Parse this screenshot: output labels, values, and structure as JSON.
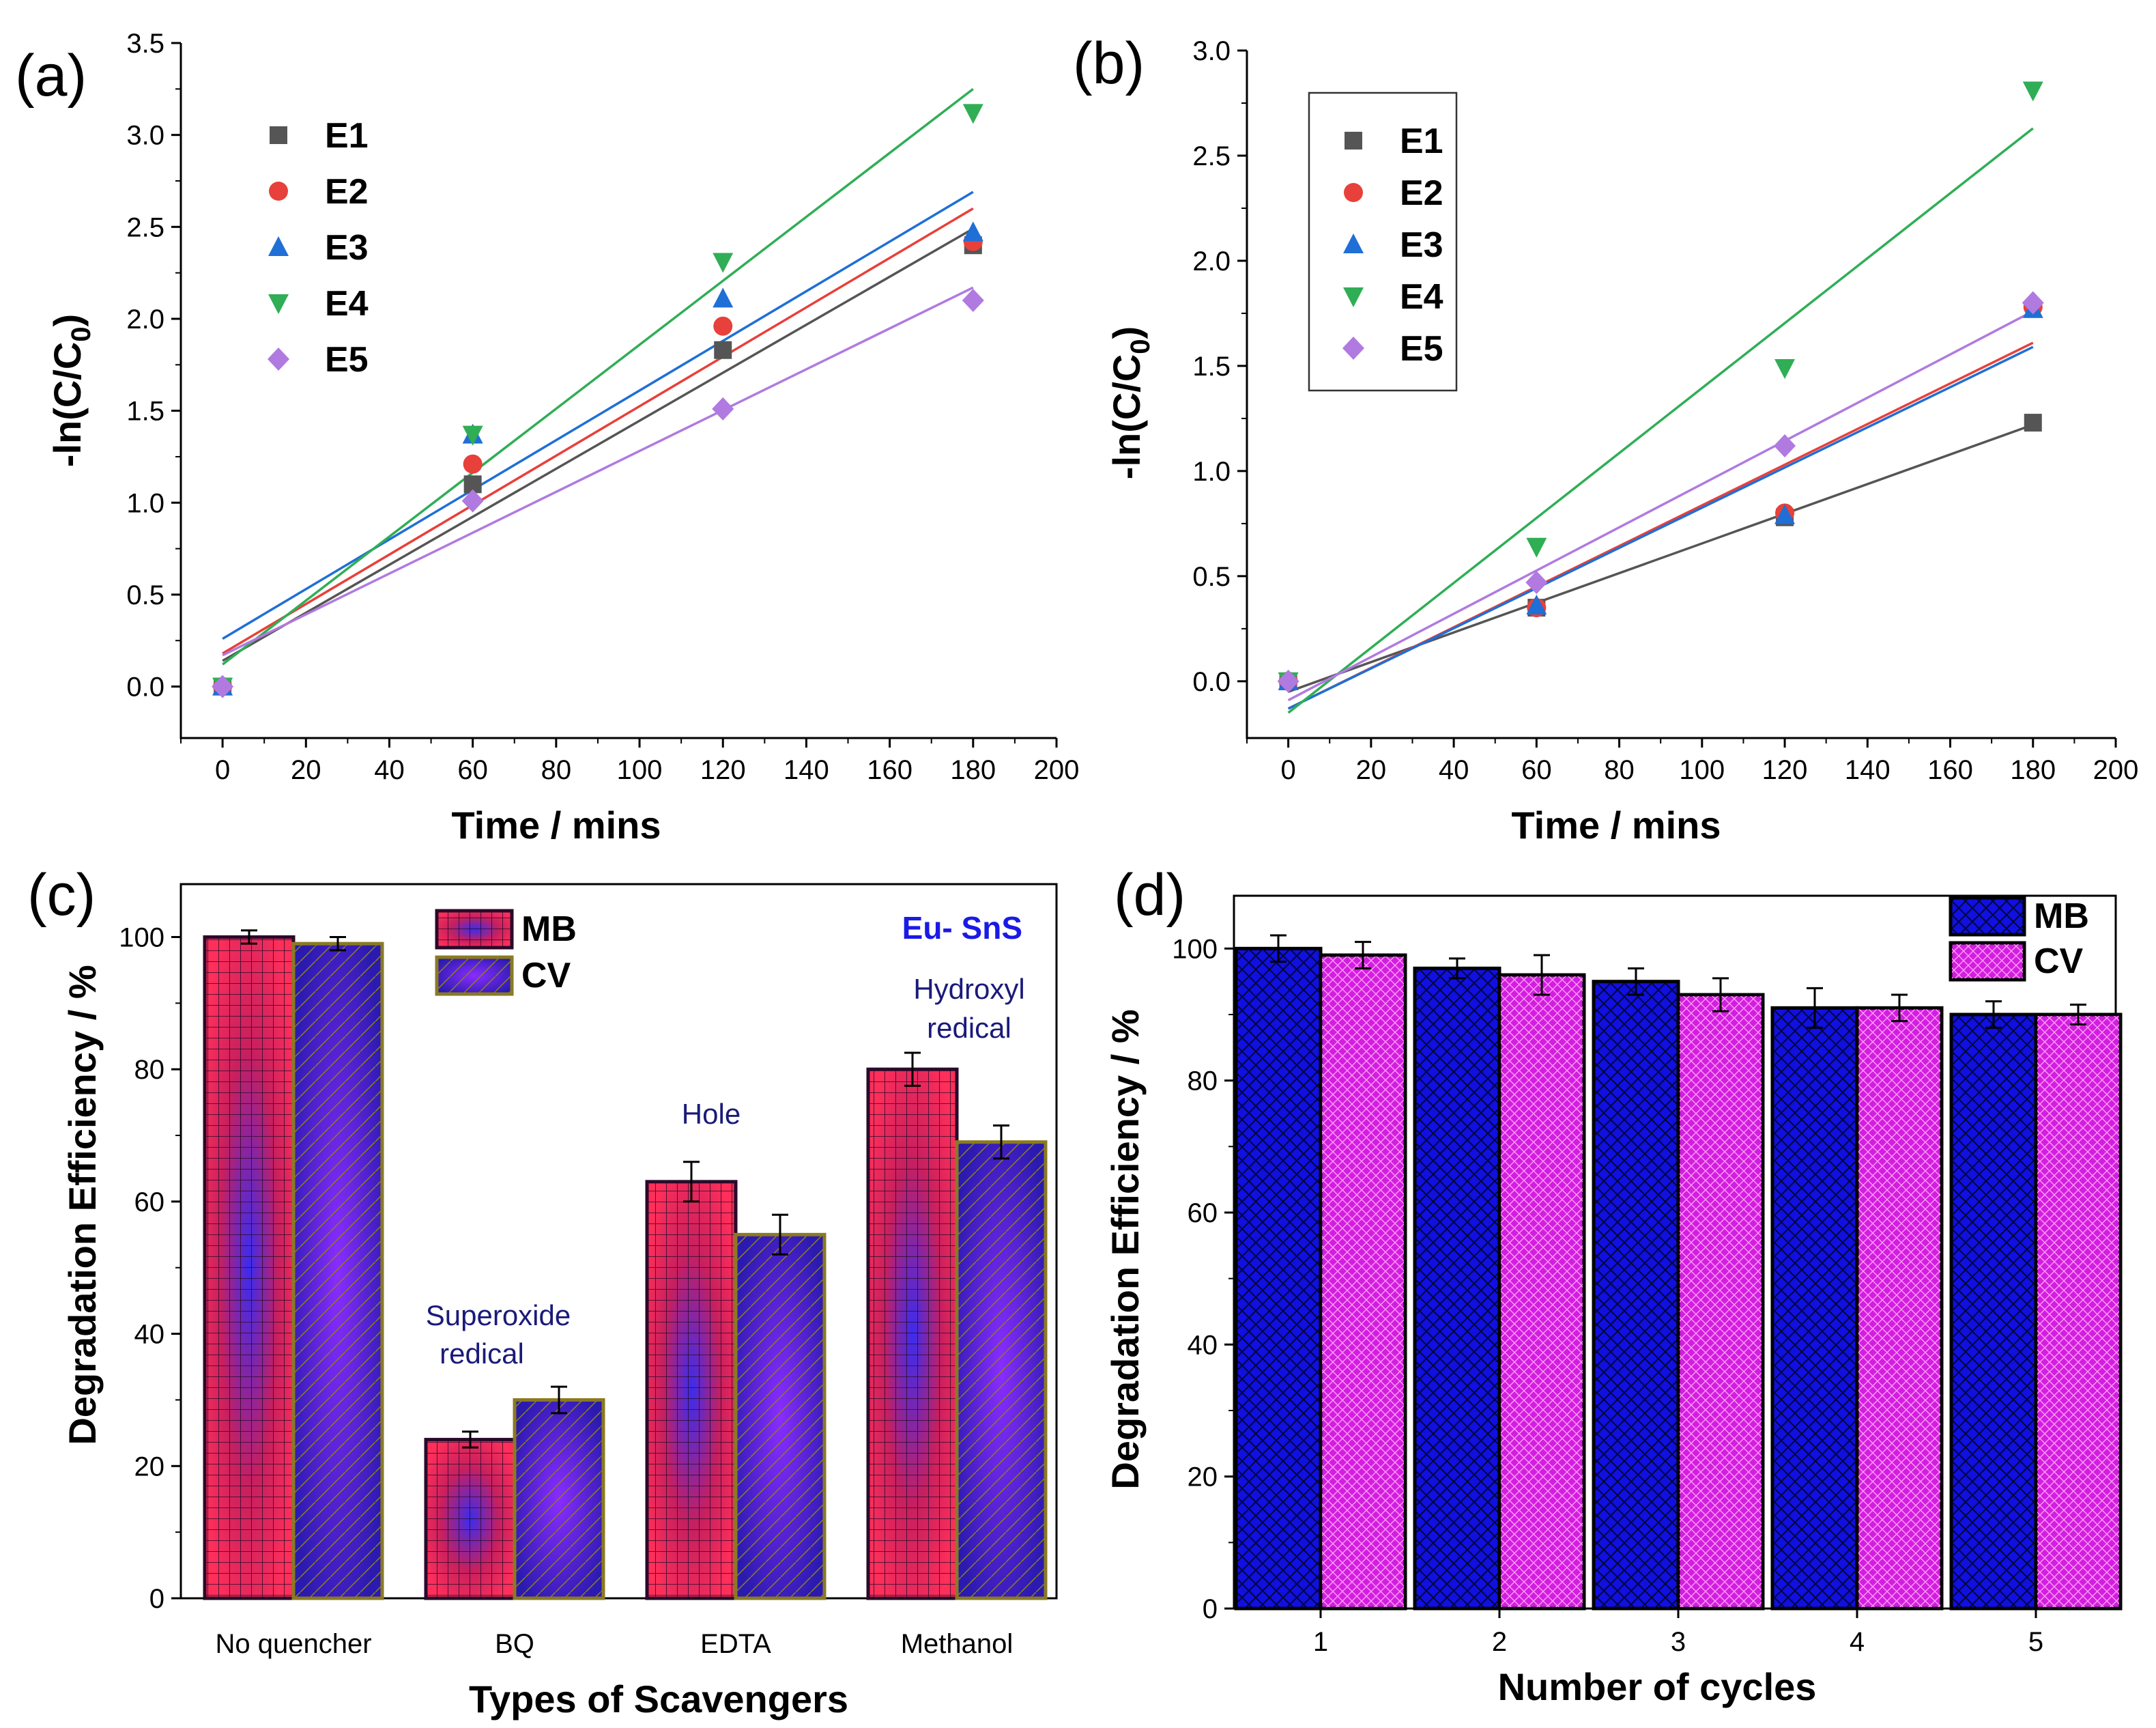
{
  "figure_labels": {
    "a": "(a)",
    "b": "(b)",
    "c": "(c)",
    "d": "(d)"
  },
  "colors": {
    "E1": "#555555",
    "E2": "#e8403a",
    "E3": "#1f6fd6",
    "E4": "#2fae55",
    "E5": "#b07ae0",
    "MB_c": "#ff2f5a",
    "CV_c": "#6a2cf0",
    "MB_d": "#1010e0",
    "CV_d": "#d21ee0",
    "edge_cv": "#8a7a22"
  },
  "chart_data": [
    {
      "id": "a",
      "type": "scatter",
      "title": "",
      "xlabel": "Time / mins",
      "ylabel": "-ln(C/C0)",
      "xlim": [
        -10,
        200
      ],
      "ylim": [
        -0.28,
        3.5
      ],
      "xticks": [
        0,
        20,
        40,
        60,
        80,
        100,
        120,
        140,
        160,
        180,
        200
      ],
      "yticks": [
        0.0,
        0.5,
        1.0,
        1.5,
        2.0,
        2.5,
        3.0,
        3.5
      ],
      "x": [
        0,
        60,
        120,
        180
      ],
      "series": [
        {
          "name": "E1",
          "marker": "square",
          "values": [
            0,
            1.1,
            1.83,
            2.4
          ],
          "fit": [
            0.14,
            2.49
          ]
        },
        {
          "name": "E2",
          "marker": "circle",
          "values": [
            0,
            1.21,
            1.96,
            2.42
          ],
          "fit": [
            0.18,
            2.6
          ]
        },
        {
          "name": "E3",
          "marker": "triangle",
          "values": [
            0,
            1.37,
            2.11,
            2.47
          ],
          "fit": [
            0.26,
            2.69
          ]
        },
        {
          "name": "E4",
          "marker": "inverted-triangle",
          "values": [
            0,
            1.37,
            2.31,
            3.12
          ],
          "fit": [
            0.12,
            3.25
          ]
        },
        {
          "name": "E5",
          "marker": "diamond",
          "values": [
            0,
            1.01,
            1.51,
            2.1
          ],
          "fit": [
            0.17,
            2.17
          ]
        }
      ],
      "legend_position": "top-left"
    },
    {
      "id": "b",
      "type": "scatter",
      "title": "",
      "xlabel": "Time / mins",
      "ylabel": "-ln(C/C0)",
      "xlim": [
        -10,
        200
      ],
      "ylim": [
        -0.27,
        3.0
      ],
      "xticks": [
        0,
        20,
        40,
        60,
        80,
        100,
        120,
        140,
        160,
        180,
        200
      ],
      "yticks": [
        0.0,
        0.5,
        1.0,
        1.5,
        2.0,
        2.5,
        3.0
      ],
      "x": [
        0,
        60,
        120,
        180
      ],
      "series": [
        {
          "name": "E1",
          "marker": "square",
          "values": [
            0,
            0.35,
            0.78,
            1.23
          ],
          "fit": [
            -0.05,
            1.22
          ]
        },
        {
          "name": "E2",
          "marker": "circle",
          "values": [
            0,
            0.35,
            0.8,
            1.78
          ],
          "fit": [
            -0.13,
            1.61
          ]
        },
        {
          "name": "E3",
          "marker": "triangle",
          "values": [
            0,
            0.36,
            0.79,
            1.77
          ],
          "fit": [
            -0.13,
            1.59
          ]
        },
        {
          "name": "E4",
          "marker": "inverted-triangle",
          "values": [
            0,
            0.64,
            1.49,
            2.81
          ],
          "fit": [
            -0.15,
            2.63
          ]
        },
        {
          "name": "E5",
          "marker": "diamond",
          "values": [
            0,
            0.47,
            1.12,
            1.8
          ],
          "fit": [
            -0.09,
            1.76
          ]
        }
      ],
      "legend_position": "top-left (boxed)"
    },
    {
      "id": "c",
      "type": "bar",
      "title": "",
      "xlabel": "Types of Scavengers",
      "ylabel": "Degradation Efficiency / %",
      "ylim": [
        0,
        108
      ],
      "yticks": [
        0,
        20,
        40,
        60,
        80,
        100
      ],
      "categories": [
        "No quencher",
        "BQ",
        "EDTA",
        "Methanol"
      ],
      "series": [
        {
          "name": "MB",
          "values": [
            100,
            24,
            63,
            80
          ],
          "errors": [
            1,
            1.2,
            3,
            2.5
          ]
        },
        {
          "name": "CV",
          "values": [
            99,
            30,
            55,
            69
          ],
          "errors": [
            1,
            2,
            3,
            2.5
          ]
        }
      ],
      "annotations": {
        "brand": "Eu- SnS",
        "superoxide_1": "Superoxide",
        "superoxide_2": "redical",
        "hole": "Hole",
        "hydroxyl_1": "Hydroxyl",
        "hydroxyl_2": "redical"
      },
      "legend_position": "top-center"
    },
    {
      "id": "d",
      "type": "bar",
      "title": "",
      "xlabel": "Number of cycles",
      "ylabel": "Degradation Efficiency / %",
      "ylim": [
        0,
        108
      ],
      "yticks": [
        0,
        20,
        40,
        60,
        80,
        100
      ],
      "categories": [
        "1",
        "2",
        "3",
        "4",
        "5"
      ],
      "series": [
        {
          "name": "MB",
          "values": [
            100,
            97,
            95,
            91,
            90
          ],
          "errors": [
            2,
            1.5,
            2,
            3,
            2
          ]
        },
        {
          "name": "CV",
          "values": [
            99,
            96,
            93,
            91,
            90
          ],
          "errors": [
            2,
            3,
            2.5,
            2,
            1.5
          ]
        }
      ],
      "legend_position": "top-right"
    }
  ]
}
